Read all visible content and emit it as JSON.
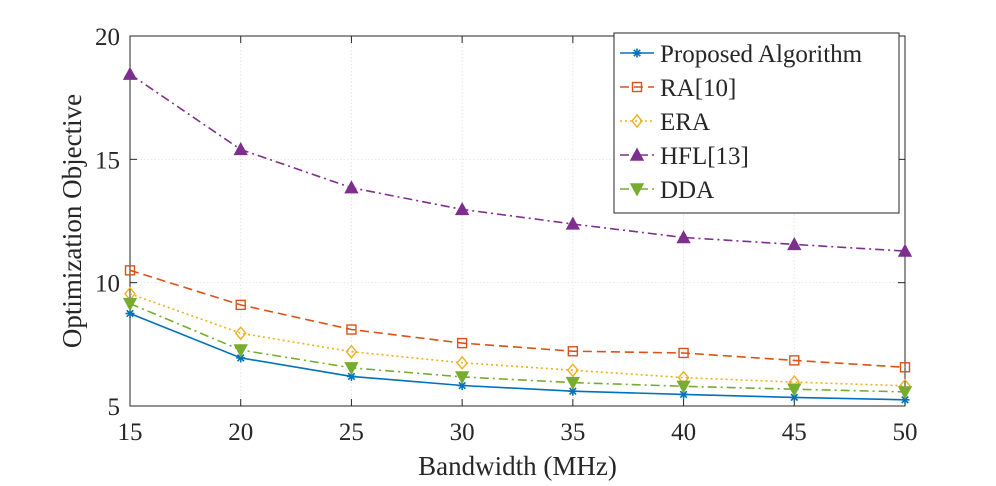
{
  "chart_data": {
    "type": "line",
    "title": "",
    "xlabel": "Bandwidth (MHz)",
    "ylabel": "Optimization Objective",
    "xlim": [
      15,
      50
    ],
    "ylim": [
      5,
      20
    ],
    "x": [
      15,
      20,
      25,
      30,
      35,
      40,
      45,
      50
    ],
    "xticks": [
      "15",
      "20",
      "25",
      "30",
      "35",
      "40",
      "45",
      "50"
    ],
    "yticks": [
      "5",
      "10",
      "15",
      "20"
    ],
    "grid": true,
    "legend_position": "top-right",
    "series": [
      {
        "name": "Proposed Algorithm",
        "color": "#0072BD",
        "marker": "asterisk",
        "dash": "solid",
        "values": [
          8.75,
          6.95,
          6.2,
          5.83,
          5.6,
          5.47,
          5.35,
          5.25
        ]
      },
      {
        "name": "RA[10]",
        "color": "#D95319",
        "marker": "square",
        "dash": "dashed",
        "values": [
          10.5,
          9.1,
          8.1,
          7.55,
          7.22,
          7.15,
          6.85,
          6.57
        ]
      },
      {
        "name": "ERA",
        "color": "#EDB120",
        "marker": "diamond",
        "dash": "dotted",
        "values": [
          9.55,
          7.95,
          7.2,
          6.75,
          6.45,
          6.15,
          5.97,
          5.82
        ]
      },
      {
        "name": "HFL[13]",
        "color": "#7E2F8E",
        "marker": "triangle-up",
        "dash": "dashdot",
        "values": [
          18.45,
          15.4,
          13.85,
          12.97,
          12.38,
          11.83,
          11.55,
          11.28
        ]
      },
      {
        "name": "DDA",
        "color": "#77AC30",
        "marker": "triangle-down",
        "dash": "dashdot",
        "values": [
          9.15,
          7.27,
          6.55,
          6.18,
          5.95,
          5.8,
          5.68,
          5.57
        ]
      }
    ]
  }
}
